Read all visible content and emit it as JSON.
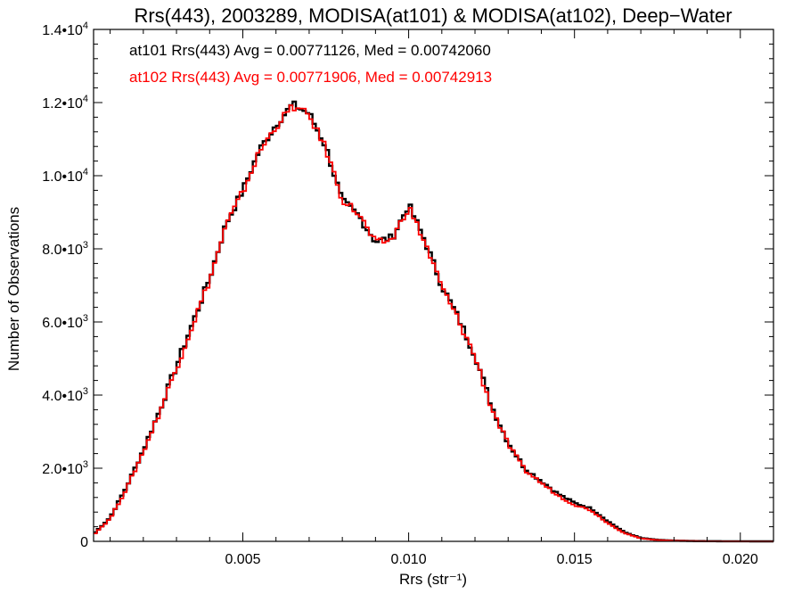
{
  "chart_data": {
    "type": "line",
    "title": "Rrs(443), 2003289, MODISA(at101) & MODISA(at102), Deep−Water",
    "xlabel": "Rrs (str⁻¹)",
    "ylabel": "Number of Observations",
    "xlim": [
      0.0005,
      0.021
    ],
    "ylim": [
      0,
      14000
    ],
    "x_ticks": [
      {
        "value": 0.005,
        "label": "0.005"
      },
      {
        "value": 0.01,
        "label": "0.010"
      },
      {
        "value": 0.015,
        "label": "0.015"
      },
      {
        "value": 0.02,
        "label": "0.020"
      }
    ],
    "y_ticks": [
      {
        "value": 0,
        "label": "0"
      },
      {
        "value": 2000,
        "label": "2.0•10",
        "exp": "3"
      },
      {
        "value": 4000,
        "label": "4.0•10",
        "exp": "3"
      },
      {
        "value": 6000,
        "label": "6.0•10",
        "exp": "3"
      },
      {
        "value": 8000,
        "label": "8.0•10",
        "exp": "3"
      },
      {
        "value": 10000,
        "label": "1.0•10",
        "exp": "4"
      },
      {
        "value": 12000,
        "label": "1.2•10",
        "exp": "4"
      },
      {
        "value": 14000,
        "label": "1.4•10",
        "exp": "4"
      }
    ],
    "annotations": [
      {
        "text": "at101 Rrs(443) Avg = 0.00771126, Med = 0.00742060",
        "color": "#000000"
      },
      {
        "text": "at102 Rrs(443) Avg = 0.00771906, Med = 0.00742913",
        "color": "#ff0000"
      }
    ],
    "x": [
      0.0005,
      0.001,
      0.0015,
      0.002,
      0.0025,
      0.003,
      0.0035,
      0.004,
      0.0045,
      0.005,
      0.0055,
      0.006,
      0.0065,
      0.007,
      0.0075,
      0.008,
      0.0085,
      0.009,
      0.0095,
      0.01,
      0.0105,
      0.011,
      0.0115,
      0.012,
      0.0125,
      0.013,
      0.0135,
      0.014,
      0.0145,
      0.015,
      0.0155,
      0.016,
      0.0165,
      0.017,
      0.0175,
      0.018,
      0.0185,
      0.019,
      0.0195,
      0.02,
      0.0205,
      0.021
    ],
    "series": [
      {
        "name": "at101",
        "color": "#000000",
        "values": [
          200,
          650,
          1500,
          2500,
          3600,
          4800,
          6000,
          7200,
          8700,
          9600,
          10700,
          11400,
          11950,
          11700,
          10800,
          9300,
          8900,
          8200,
          8300,
          9200,
          8200,
          7000,
          6100,
          5100,
          3700,
          2700,
          2000,
          1650,
          1300,
          1050,
          900,
          550,
          250,
          90,
          40,
          20,
          10,
          5,
          2,
          1,
          0,
          0
        ]
      },
      {
        "name": "at102",
        "color": "#ff0000",
        "values": [
          180,
          620,
          1450,
          2450,
          3550,
          4750,
          5950,
          7150,
          8650,
          9550,
          10650,
          11350,
          11900,
          11650,
          10750,
          9350,
          8950,
          8150,
          8250,
          9150,
          8150,
          6950,
          6050,
          5050,
          3650,
          2650,
          1950,
          1600,
          1250,
          1000,
          850,
          500,
          230,
          80,
          35,
          18,
          9,
          4,
          2,
          1,
          0,
          0
        ]
      }
    ]
  }
}
